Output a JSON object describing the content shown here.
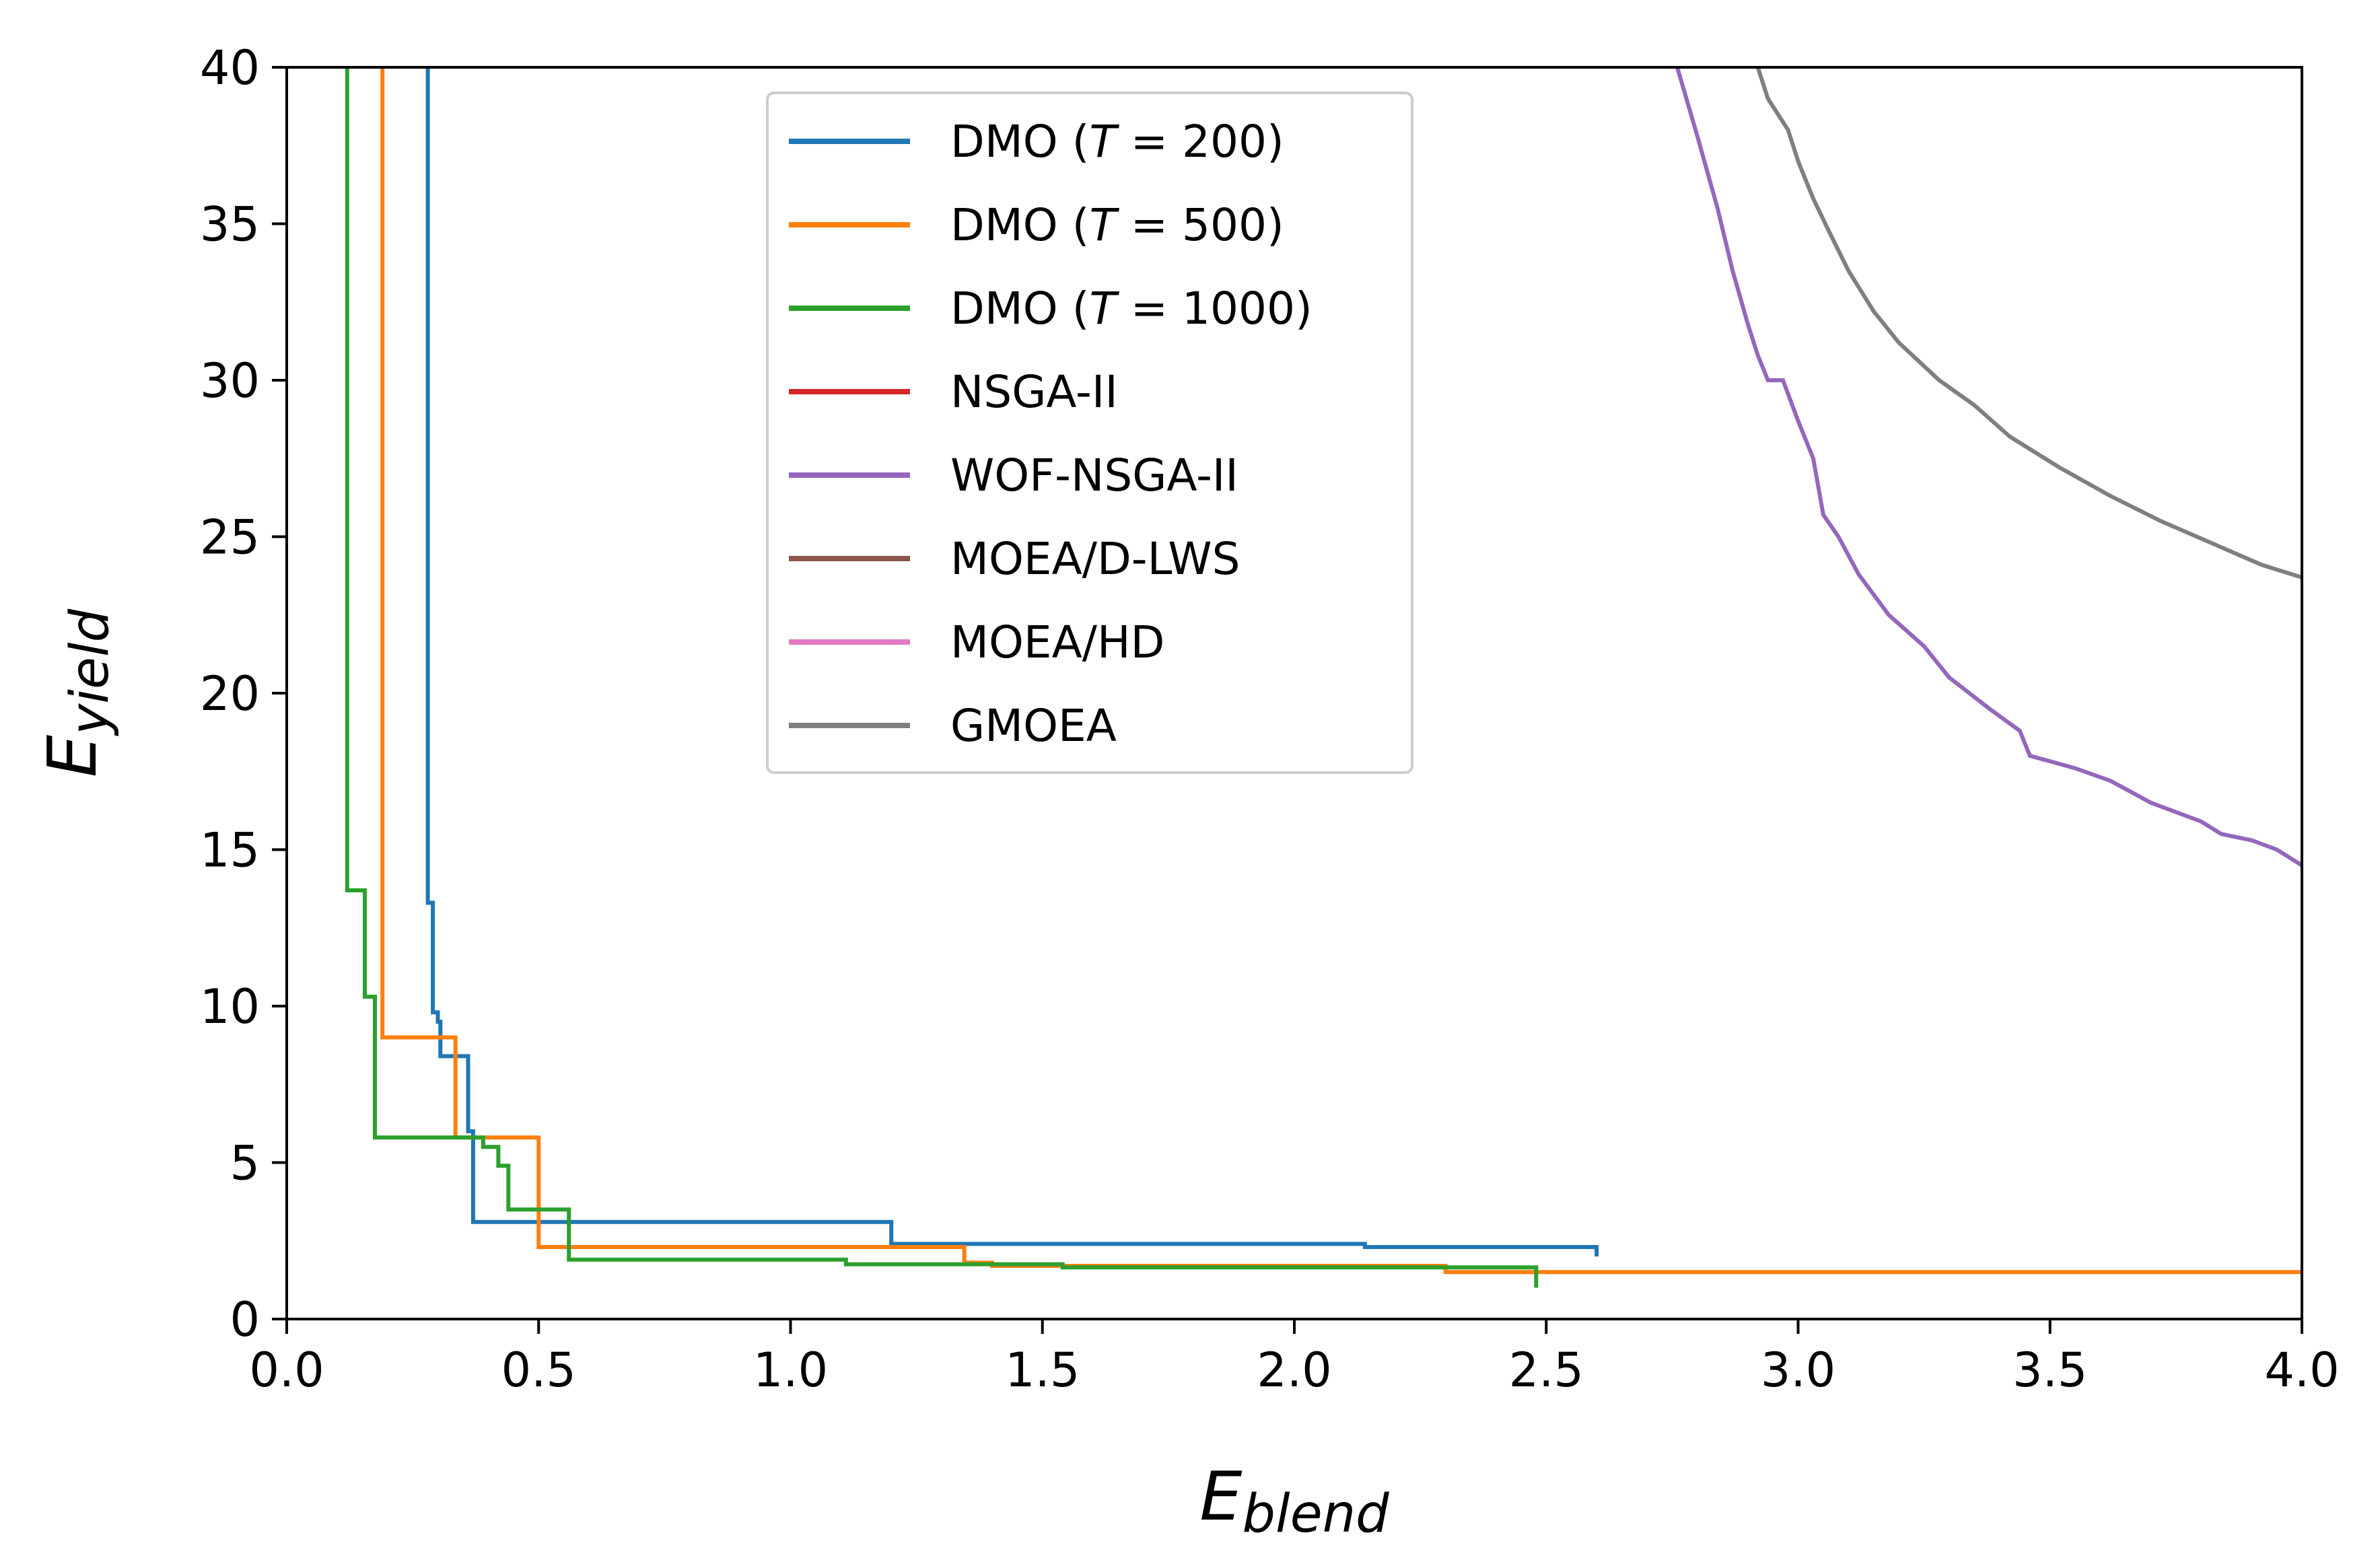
{
  "chart_data": {
    "type": "line",
    "xlabel": {
      "main": "E",
      "sub": "blend"
    },
    "ylabel": {
      "main": "E",
      "sub": "yield"
    },
    "xlim": [
      0,
      4
    ],
    "ylim": [
      0,
      40
    ],
    "xticks": [
      0,
      0.5,
      1,
      1.5,
      2,
      2.5,
      3,
      3.5,
      4
    ],
    "xtick_labels": [
      "0.0",
      "0.5",
      "1.0",
      "1.5",
      "2.0",
      "2.5",
      "3.0",
      "3.5",
      "4.0"
    ],
    "yticks": [
      0,
      5,
      10,
      15,
      20,
      25,
      30,
      35,
      40
    ],
    "ytick_labels": [
      "0",
      "5",
      "10",
      "15",
      "20",
      "25",
      "30",
      "35",
      "40"
    ],
    "legend_position": "top-center",
    "series": [
      {
        "name": "DMO (T = 200)",
        "label_parts": {
          "prefix": "DMO (",
          "var": "T",
          "rest": " = 200)"
        },
        "color": "#1f77b4",
        "points": [
          [
            0.28,
            41
          ],
          [
            0.28,
            13.3
          ],
          [
            0.29,
            13.3
          ],
          [
            0.29,
            9.8
          ],
          [
            0.3,
            9.8
          ],
          [
            0.3,
            9.5
          ],
          [
            0.305,
            9.5
          ],
          [
            0.305,
            8.4
          ],
          [
            0.36,
            8.4
          ],
          [
            0.36,
            6.0
          ],
          [
            0.37,
            6.0
          ],
          [
            0.37,
            3.1
          ],
          [
            1.2,
            3.1
          ],
          [
            1.2,
            2.4
          ],
          [
            2.14,
            2.4
          ],
          [
            2.14,
            2.3
          ],
          [
            2.6,
            2.3
          ],
          [
            2.6,
            2.0
          ]
        ]
      },
      {
        "name": "DMO (T = 500)",
        "label_parts": {
          "prefix": "DMO (",
          "var": "T",
          "rest": " = 500)"
        },
        "color": "#ff7f0e",
        "points": [
          [
            0.19,
            41
          ],
          [
            0.19,
            9.0
          ],
          [
            0.335,
            9.0
          ],
          [
            0.335,
            5.8
          ],
          [
            0.5,
            5.8
          ],
          [
            0.5,
            2.3
          ],
          [
            1.345,
            2.3
          ],
          [
            1.345,
            1.8
          ],
          [
            1.4,
            1.8
          ],
          [
            1.4,
            1.7
          ],
          [
            2.3,
            1.7
          ],
          [
            2.3,
            1.5
          ],
          [
            4.05,
            1.5
          ]
        ]
      },
      {
        "name": "DMO (T = 1000)",
        "label_parts": {
          "prefix": "DMO (",
          "var": "T",
          "rest": " = 1000)"
        },
        "color": "#2ca02c",
        "points": [
          [
            0.12,
            41
          ],
          [
            0.12,
            13.7
          ],
          [
            0.155,
            13.7
          ],
          [
            0.155,
            10.3
          ],
          [
            0.175,
            10.3
          ],
          [
            0.175,
            5.8
          ],
          [
            0.39,
            5.8
          ],
          [
            0.39,
            5.5
          ],
          [
            0.42,
            5.5
          ],
          [
            0.42,
            4.9
          ],
          [
            0.44,
            4.9
          ],
          [
            0.44,
            3.5
          ],
          [
            0.56,
            3.5
          ],
          [
            0.56,
            1.9
          ],
          [
            1.11,
            1.9
          ],
          [
            1.11,
            1.75
          ],
          [
            1.54,
            1.75
          ],
          [
            1.54,
            1.65
          ],
          [
            2.48,
            1.65
          ],
          [
            2.48,
            1.0
          ]
        ]
      },
      {
        "name": "NSGA-II",
        "color": "#d62728",
        "points": []
      },
      {
        "name": "WOF-NSGA-II",
        "color": "#9467bd",
        "points": [
          [
            2.76,
            40
          ],
          [
            2.8,
            37.8
          ],
          [
            2.84,
            35.5
          ],
          [
            2.87,
            33.5
          ],
          [
            2.9,
            31.8
          ],
          [
            2.92,
            30.8
          ],
          [
            2.94,
            30.0
          ],
          [
            2.97,
            30.0
          ],
          [
            3.0,
            28.7
          ],
          [
            3.03,
            27.5
          ],
          [
            3.05,
            25.7
          ],
          [
            3.08,
            25.0
          ],
          [
            3.12,
            23.8
          ],
          [
            3.18,
            22.5
          ],
          [
            3.25,
            21.5
          ],
          [
            3.3,
            20.5
          ],
          [
            3.38,
            19.5
          ],
          [
            3.44,
            18.8
          ],
          [
            3.46,
            18.0
          ],
          [
            3.55,
            17.6
          ],
          [
            3.62,
            17.2
          ],
          [
            3.7,
            16.5
          ],
          [
            3.8,
            15.9
          ],
          [
            3.84,
            15.5
          ],
          [
            3.9,
            15.3
          ],
          [
            3.95,
            15.0
          ],
          [
            4.0,
            14.5
          ]
        ]
      },
      {
        "name": "MOEA/D-LWS",
        "color": "#8c564b",
        "points": []
      },
      {
        "name": "MOEA/HD",
        "color": "#e377c2",
        "points": []
      },
      {
        "name": "GMOEA",
        "color": "#7f7f7f",
        "points": [
          [
            2.92,
            40
          ],
          [
            2.94,
            39.0
          ],
          [
            2.98,
            38.0
          ],
          [
            3.0,
            37.0
          ],
          [
            3.03,
            35.8
          ],
          [
            3.06,
            34.8
          ],
          [
            3.1,
            33.5
          ],
          [
            3.15,
            32.2
          ],
          [
            3.2,
            31.2
          ],
          [
            3.28,
            30.0
          ],
          [
            3.35,
            29.2
          ],
          [
            3.42,
            28.2
          ],
          [
            3.52,
            27.2
          ],
          [
            3.62,
            26.3
          ],
          [
            3.72,
            25.5
          ],
          [
            3.82,
            24.8
          ],
          [
            3.92,
            24.1
          ],
          [
            4.0,
            23.7
          ]
        ]
      }
    ]
  }
}
